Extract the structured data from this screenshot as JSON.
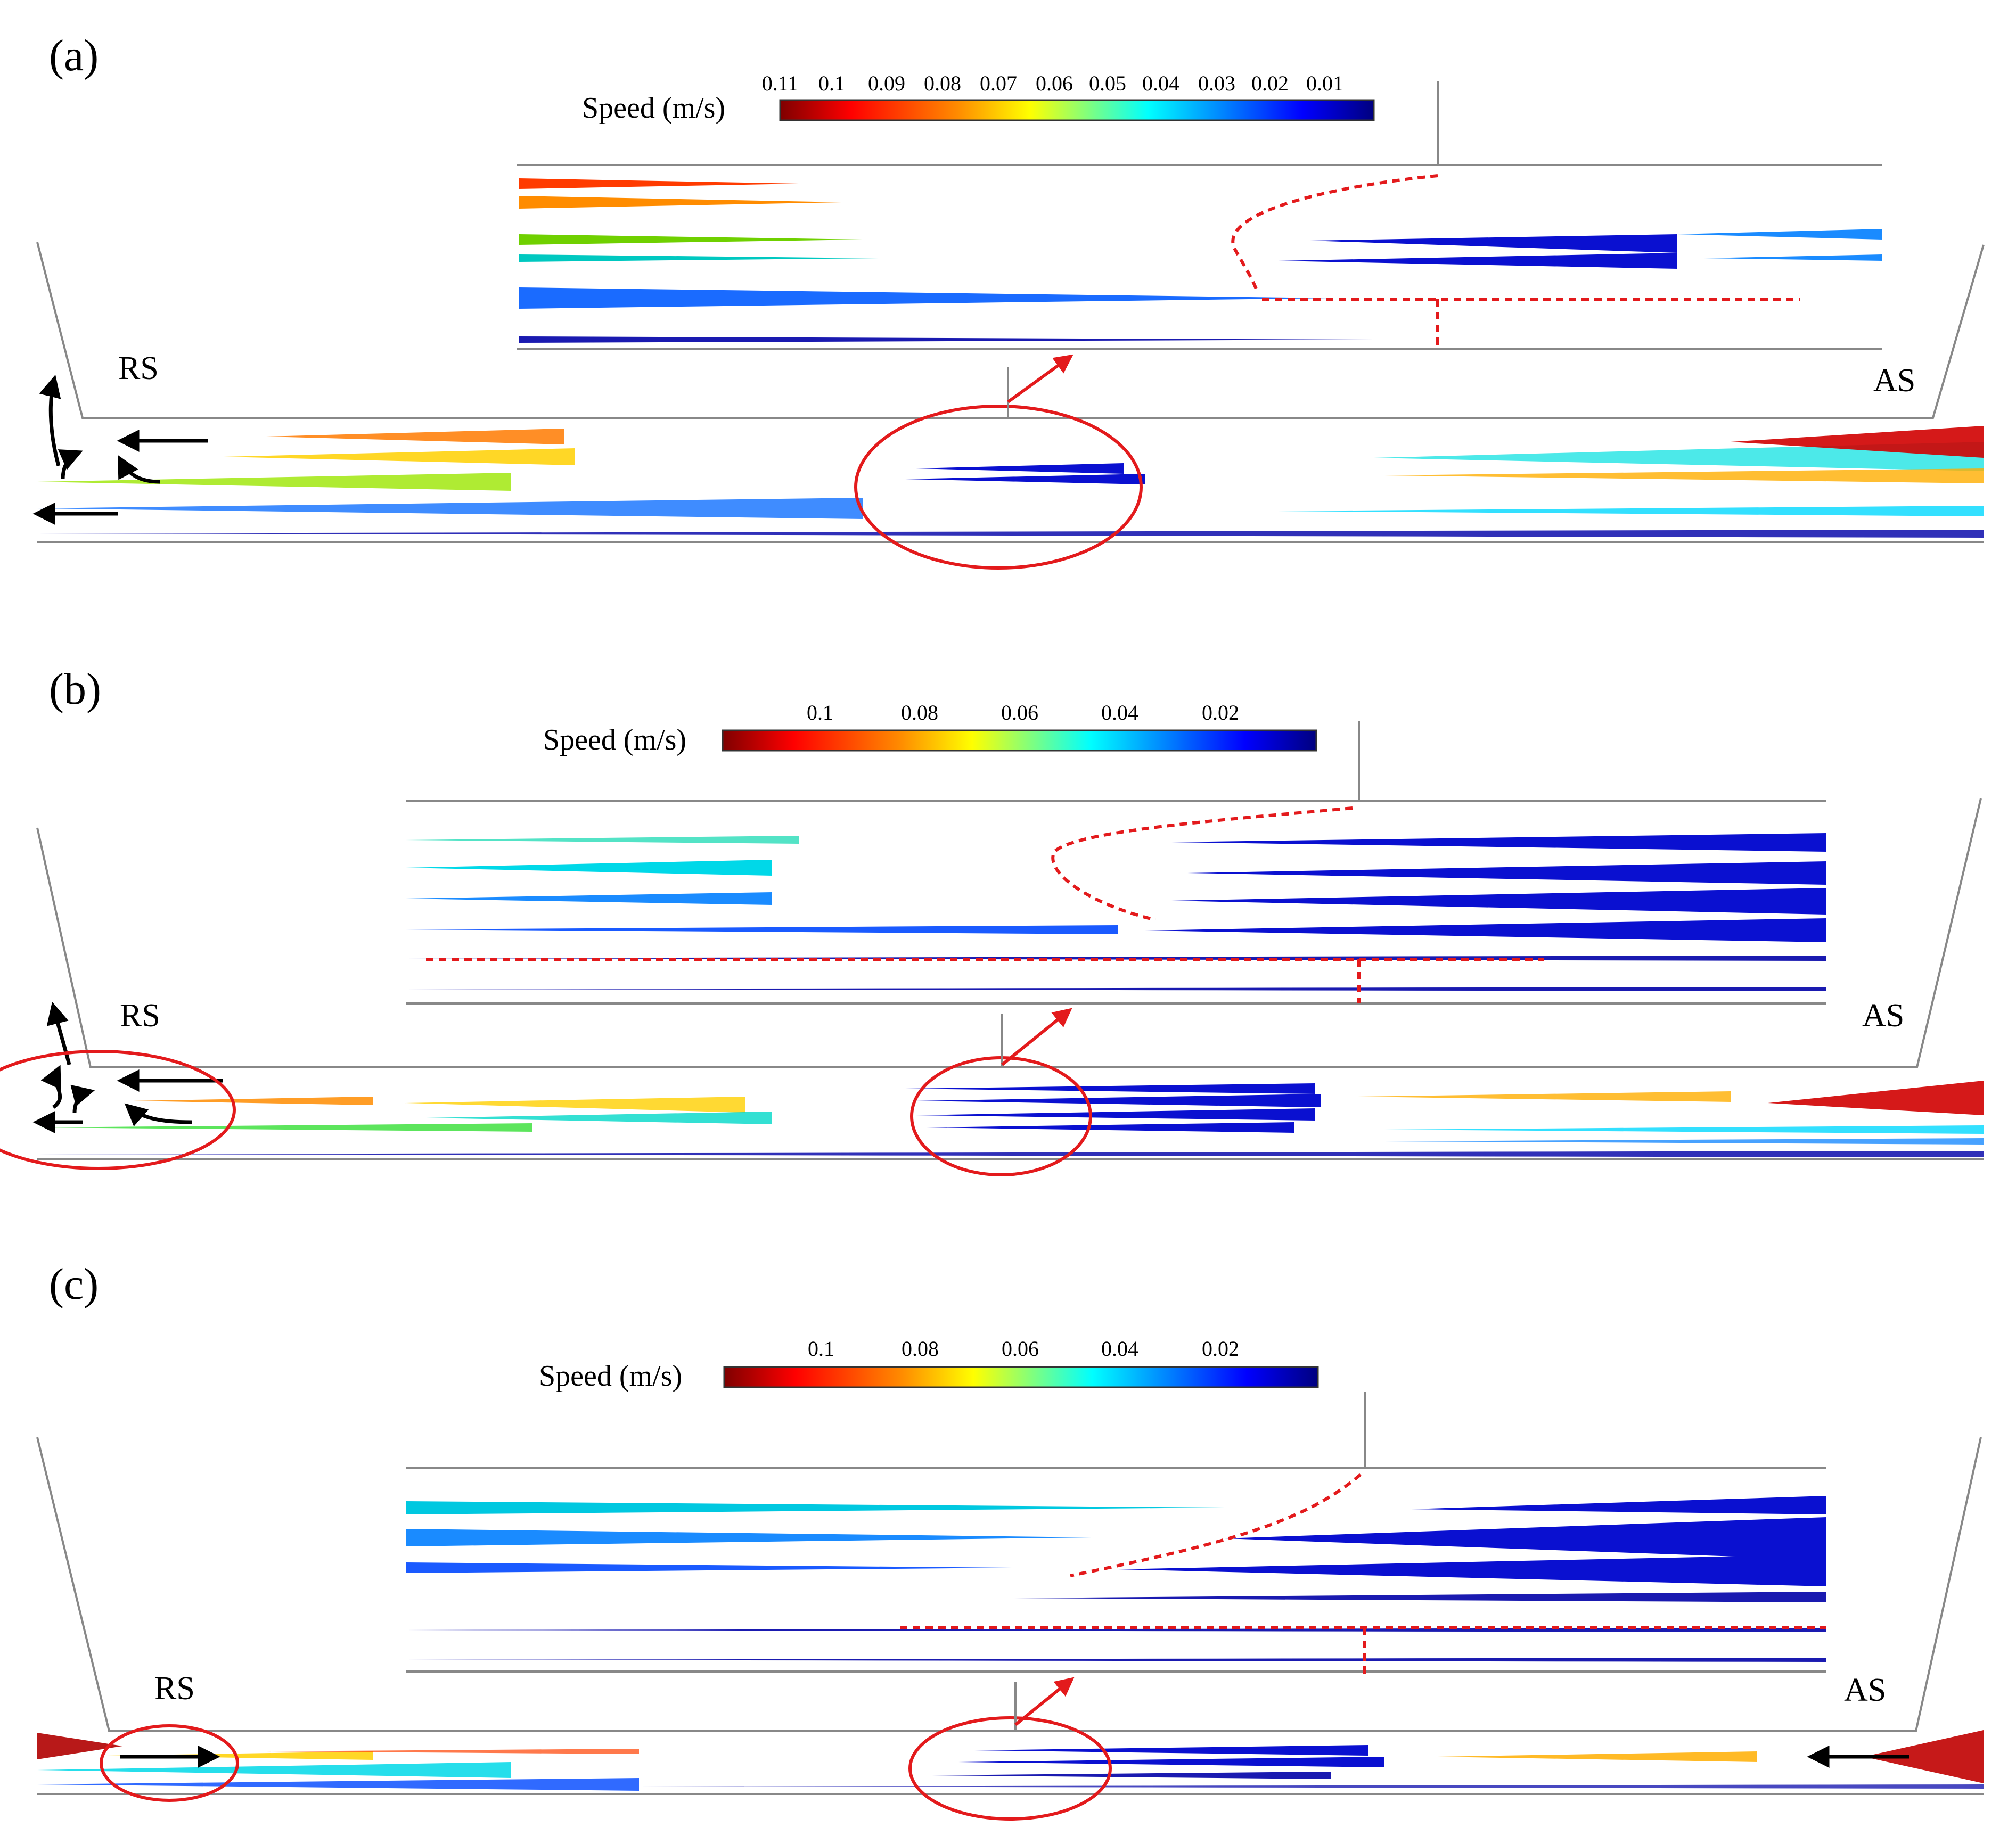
{
  "figure": {
    "panels": [
      {
        "id": "a",
        "panel_label": "(a)",
        "legend": {
          "title": "Speed (m/s)",
          "ticks": [
            "0.11",
            "0.1",
            "0.09",
            "0.08",
            "0.07",
            "0.06",
            "0.05",
            "0.04",
            "0.03",
            "0.02",
            "0.01"
          ]
        },
        "left_label": "RS",
        "right_label": "AS"
      },
      {
        "id": "b",
        "panel_label": "(b)",
        "legend": {
          "title": "Speed (m/s)",
          "ticks": [
            "0.1",
            "0.08",
            "0.06",
            "0.04",
            "0.02"
          ]
        },
        "left_label": "RS",
        "right_label": "AS"
      },
      {
        "id": "c",
        "panel_label": "(c)",
        "legend": {
          "title": "Speed (m/s)",
          "ticks": [
            "0.1",
            "0.08",
            "0.06",
            "0.04",
            "0.02"
          ]
        },
        "left_label": "RS",
        "right_label": "AS"
      }
    ],
    "colormap": [
      "#7f0000",
      "#ff0000",
      "#ff8c00",
      "#ffff00",
      "#7fff7f",
      "#00ffff",
      "#0080ff",
      "#0000ff",
      "#00007f"
    ],
    "annotation_color": "#e31a1c"
  }
}
